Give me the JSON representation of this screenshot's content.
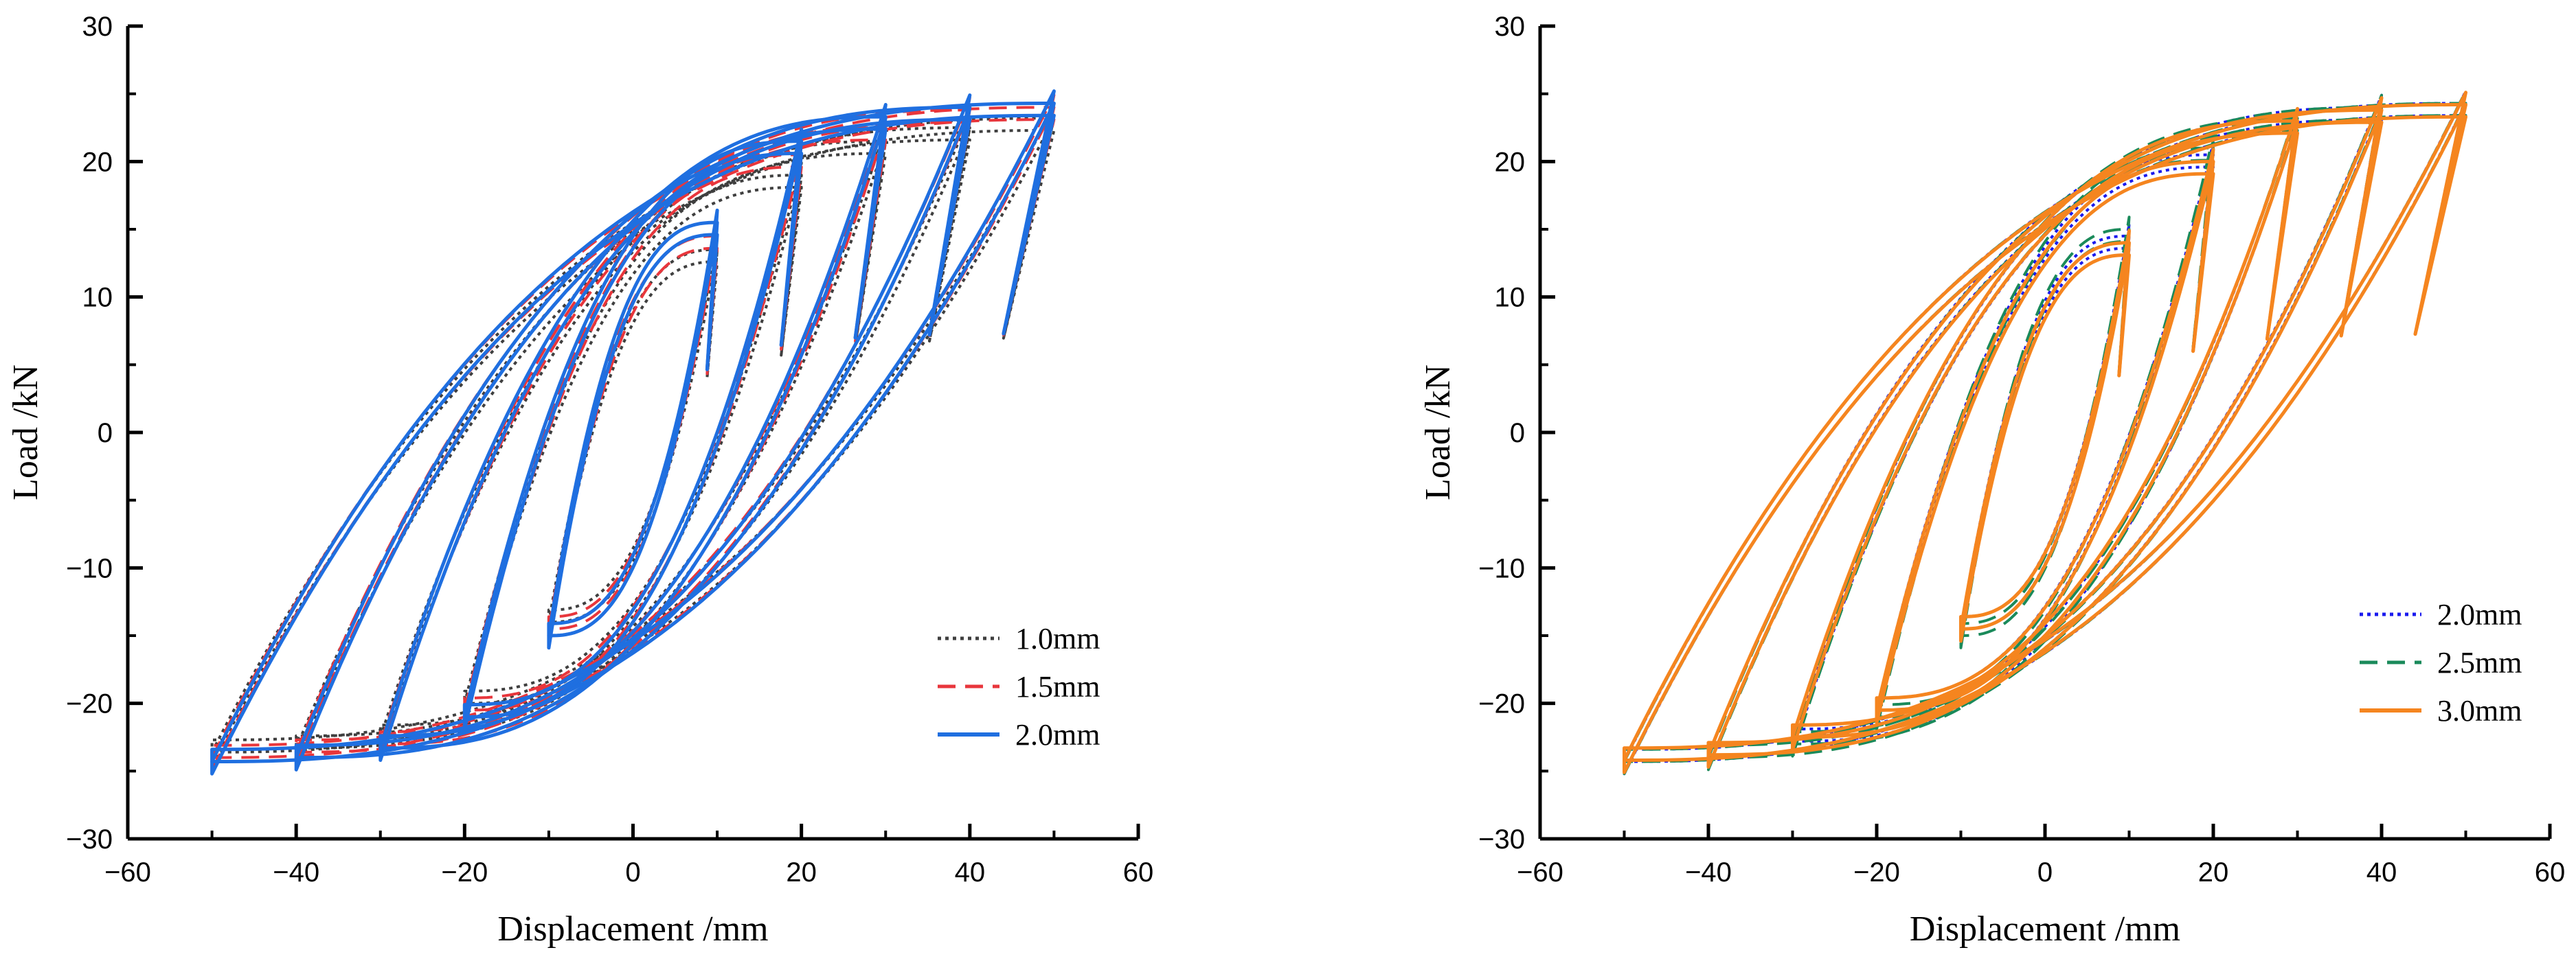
{
  "chart_data": [
    {
      "type": "line",
      "title": "",
      "xlabel": "Displacement /mm",
      "ylabel": "Load /kN",
      "xlim": [
        -60,
        60
      ],
      "ylim": [
        -30,
        30
      ],
      "xticks": [
        -60,
        -40,
        -20,
        0,
        20,
        40,
        60
      ],
      "yticks": [
        -30,
        -20,
        -10,
        0,
        10,
        20,
        30
      ],
      "xtick_labels": [
        "−60",
        "−40",
        "−20",
        "0",
        "20",
        "40",
        "60"
      ],
      "ytick_labels": [
        "−30",
        "−20",
        "−10",
        "0",
        "10",
        "20",
        "30"
      ],
      "grid": false,
      "legend_position": "bottom-right",
      "amplitudes_mm": [
        10,
        20,
        30,
        40,
        50
      ],
      "series": [
        {
          "name": "1.0mm",
          "color": "#3f3f3f",
          "style": "dotted",
          "peaks_kN": [
            [
              10,
              13.5,
              -10,
              -14
            ],
            [
              20,
              19,
              -20,
              -20
            ],
            [
              30,
              21.5,
              -30,
              -22.5
            ],
            [
              40,
              22.5,
              -40,
              -23.3
            ],
            [
              50,
              23.2,
              -50,
              -23.6
            ]
          ]
        },
        {
          "name": "1.5mm",
          "color": "#e8363c",
          "style": "dashed",
          "peaks_kN": [
            [
              10,
              14.5,
              -10,
              -14.5
            ],
            [
              20,
              20.5,
              -20,
              -20.5
            ],
            [
              30,
              22.5,
              -30,
              -23
            ],
            [
              40,
              23.8,
              -40,
              -23.6
            ],
            [
              50,
              24.0,
              -50,
              -24.0
            ]
          ]
        },
        {
          "name": "2.0mm",
          "color": "#1f6fe0",
          "style": "solid",
          "peaks_kN": [
            [
              10,
              15.5,
              -10,
              -15
            ],
            [
              20,
              21.5,
              -20,
              -21
            ],
            [
              30,
              23.3,
              -30,
              -23.3
            ],
            [
              40,
              24.0,
              -40,
              -24.0
            ],
            [
              50,
              24.3,
              -50,
              -24.3
            ]
          ]
        }
      ]
    },
    {
      "type": "line",
      "title": "",
      "xlabel": "Displacement /mm",
      "ylabel": "Load /kN",
      "xlim": [
        -60,
        60
      ],
      "ylim": [
        -30,
        30
      ],
      "xticks": [
        -60,
        -40,
        -20,
        0,
        20,
        40,
        60
      ],
      "yticks": [
        -30,
        -20,
        -10,
        0,
        10,
        20,
        30
      ],
      "xtick_labels": [
        "−60",
        "−40",
        "−20",
        "0",
        "20",
        "40",
        "60"
      ],
      "ytick_labels": [
        "−30",
        "−20",
        "−10",
        "0",
        "10",
        "20",
        "30"
      ],
      "grid": false,
      "legend_position": "bottom-right",
      "amplitudes_mm": [
        10,
        20,
        30,
        40,
        50
      ],
      "series": [
        {
          "name": "2.0mm",
          "color": "#1a1aee",
          "style": "dotted",
          "peaks_kN": [
            [
              10,
              14.5,
              -10,
              -14.5
            ],
            [
              20,
              20.5,
              -20,
              -20.5
            ],
            [
              30,
              23.0,
              -30,
              -22.8
            ],
            [
              40,
              24.0,
              -40,
              -23.8
            ],
            [
              50,
              24.3,
              -50,
              -24.3
            ]
          ]
        },
        {
          "name": "2.5mm",
          "color": "#1a8a5a",
          "style": "dashed",
          "peaks_kN": [
            [
              10,
              15.0,
              -10,
              -15.0
            ],
            [
              20,
              21.0,
              -20,
              -21.0
            ],
            [
              30,
              23.2,
              -30,
              -23.0
            ],
            [
              40,
              24.0,
              -40,
              -24.0
            ],
            [
              50,
              24.3,
              -50,
              -24.3
            ]
          ]
        },
        {
          "name": "3.0mm",
          "color": "#f5851f",
          "style": "solid",
          "peaks_kN": [
            [
              10,
              14.0,
              -10,
              -14.5
            ],
            [
              20,
              20.0,
              -20,
              -20.5
            ],
            [
              30,
              23.0,
              -30,
              -22.5
            ],
            [
              40,
              23.8,
              -40,
              -23.8
            ],
            [
              50,
              24.2,
              -50,
              -24.2
            ]
          ]
        }
      ]
    }
  ]
}
